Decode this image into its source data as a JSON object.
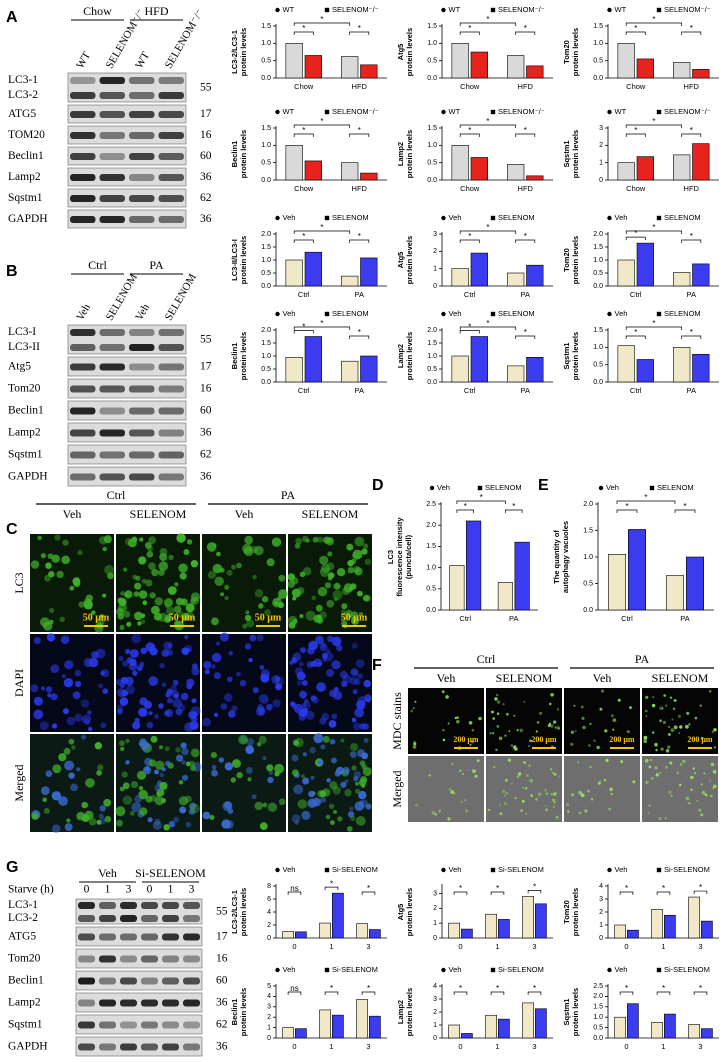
{
  "chart_data": [
    {
      "type": "bar",
      "ylabel": [
        "LC3-2/LC3-1",
        "protein levels"
      ],
      "categories": [
        "Chow",
        "HFD"
      ],
      "series": [
        {
          "name": "WT",
          "color": "#d9d9d9",
          "values": [
            1.0,
            0.62
          ]
        },
        {
          "name": "SELENOM⁻/⁻",
          "color": "#e8221c",
          "values": [
            0.65,
            0.38
          ]
        }
      ],
      "ylim": [
        0,
        1.5
      ],
      "yticks": [
        {
          "value": 0,
          "label": "0.0"
        },
        0.5,
        {
          "value": 1,
          "label": "1.0"
        },
        1.5
      ],
      "significance": [
        "*",
        "*",
        "*"
      ]
    },
    {
      "type": "bar",
      "ylabel": [
        "Atg5",
        "protein levels"
      ],
      "categories": [
        "Chow",
        "HFD"
      ],
      "series": [
        {
          "name": "WT",
          "color": "#d9d9d9",
          "values": [
            1.0,
            0.65
          ]
        },
        {
          "name": "SELENOM⁻/⁻",
          "color": "#e8221c",
          "values": [
            0.75,
            0.35
          ]
        }
      ],
      "ylim": [
        0,
        1.5
      ],
      "yticks": [
        {
          "value": 0,
          "label": "0.0"
        },
        0.5,
        {
          "value": 1,
          "label": "1.0"
        },
        1.5
      ],
      "significance": [
        "*",
        "*",
        "*"
      ]
    },
    {
      "type": "bar",
      "ylabel": [
        "Tom20",
        "protein levels"
      ],
      "categories": [
        "Chow",
        "HFD"
      ],
      "series": [
        {
          "name": "WT",
          "color": "#d9d9d9",
          "values": [
            1.0,
            0.45
          ]
        },
        {
          "name": "SELENOM⁻/⁻",
          "color": "#e8221c",
          "values": [
            0.55,
            0.25
          ]
        }
      ],
      "ylim": [
        0,
        1.5
      ],
      "yticks": [
        {
          "value": 0,
          "label": "0.0"
        },
        0.5,
        {
          "value": 1,
          "label": "1.0"
        },
        1.5
      ],
      "significance": [
        "*",
        "*",
        "*"
      ]
    },
    {
      "type": "bar",
      "ylabel": [
        "Beclin1",
        "protein levels"
      ],
      "categories": [
        "Chow",
        "HFD"
      ],
      "series": [
        {
          "name": "WT",
          "color": "#d9d9d9",
          "values": [
            1.0,
            0.5
          ]
        },
        {
          "name": "SELENOM⁻/⁻",
          "color": "#e8221c",
          "values": [
            0.55,
            0.2
          ]
        }
      ],
      "ylim": [
        0,
        1.5
      ],
      "yticks": [
        {
          "value": 0,
          "label": "0.0"
        },
        0.5,
        {
          "value": 1,
          "label": "1.0"
        },
        1.5
      ],
      "significance": [
        "*",
        "*",
        "*"
      ]
    },
    {
      "type": "bar",
      "ylabel": [
        "Lamp2",
        "protein levels"
      ],
      "categories": [
        "Chow",
        "HFD"
      ],
      "series": [
        {
          "name": "WT",
          "color": "#d9d9d9",
          "values": [
            1.0,
            0.45
          ]
        },
        {
          "name": "SELENOM⁻/⁻",
          "color": "#e8221c",
          "values": [
            0.65,
            0.12
          ]
        }
      ],
      "ylim": [
        0,
        1.5
      ],
      "yticks": [
        {
          "value": 0,
          "label": "0.0"
        },
        0.5,
        {
          "value": 1,
          "label": "1.0"
        },
        1.5
      ],
      "significance": [
        "*",
        "*",
        "*"
      ]
    },
    {
      "type": "bar",
      "ylabel": [
        "Sqstm1",
        "protein levels"
      ],
      "categories": [
        "Chow",
        "HFD"
      ],
      "series": [
        {
          "name": "WT",
          "color": "#d9d9d9",
          "values": [
            1.0,
            1.45
          ]
        },
        {
          "name": "SELENOM⁻/⁻",
          "color": "#e8221c",
          "values": [
            1.35,
            2.1
          ]
        }
      ],
      "ylim": [
        0,
        3
      ],
      "yticks": [
        0,
        1,
        2,
        3
      ],
      "significance": [
        "*",
        "*",
        "*"
      ]
    },
    {
      "type": "bar",
      "ylabel": [
        "LC3-II/LC3-I",
        "protein levels"
      ],
      "categories": [
        "Ctrl",
        "PA"
      ],
      "series": [
        {
          "name": "Veh",
          "color": "#f1e8c8",
          "values": [
            1.0,
            0.38
          ]
        },
        {
          "name": "SELENOM",
          "color": "#3b3bf0",
          "values": [
            1.3,
            1.08
          ]
        }
      ],
      "ylim": [
        0,
        2
      ],
      "yticks": [
        {
          "value": 0,
          "label": "0.0"
        },
        0.5,
        {
          "value": 1,
          "label": "1.0"
        },
        1.5,
        {
          "value": 2,
          "label": "2.0"
        }
      ],
      "significance": [
        "*",
        "*",
        "*"
      ]
    },
    {
      "type": "bar",
      "ylabel": [
        "Atg5",
        "protein levels"
      ],
      "categories": [
        "Ctrl",
        "PA"
      ],
      "series": [
        {
          "name": "Veh",
          "color": "#f1e8c8",
          "values": [
            1.0,
            0.75
          ]
        },
        {
          "name": "SELENOM",
          "color": "#3b3bf0",
          "values": [
            1.9,
            1.2
          ]
        }
      ],
      "ylim": [
        0,
        3
      ],
      "yticks": [
        0,
        1,
        2,
        3
      ],
      "significance": [
        "*",
        "*",
        "*"
      ]
    },
    {
      "type": "bar",
      "ylabel": [
        "Tom20",
        "protein levels"
      ],
      "categories": [
        "Ctrl",
        "PA"
      ],
      "series": [
        {
          "name": "Veh",
          "color": "#f1e8c8",
          "values": [
            1.0,
            0.52
          ]
        },
        {
          "name": "SELENOM",
          "color": "#3b3bf0",
          "values": [
            1.65,
            0.85
          ]
        }
      ],
      "ylim": [
        0,
        2
      ],
      "yticks": [
        {
          "value": 0,
          "label": "0.0"
        },
        0.5,
        {
          "value": 1,
          "label": "1.0"
        },
        1.5,
        {
          "value": 2,
          "label": "2.0"
        }
      ],
      "significance": [
        "*",
        "*",
        "*"
      ]
    },
    {
      "type": "bar",
      "ylabel": [
        "Beclin1",
        "protein levels"
      ],
      "categories": [
        "Ctrl",
        "PA"
      ],
      "series": [
        {
          "name": "Veh",
          "color": "#f1e8c8",
          "values": [
            0.95,
            0.8
          ]
        },
        {
          "name": "SELENOM",
          "color": "#3b3bf0",
          "values": [
            1.75,
            1.0
          ]
        }
      ],
      "ylim": [
        0,
        2
      ],
      "yticks": [
        {
          "value": 0,
          "label": "0.0"
        },
        0.5,
        {
          "value": 1,
          "label": "1.0"
        },
        1.5,
        {
          "value": 2,
          "label": "2.0"
        }
      ],
      "significance": [
        "*",
        "*",
        "*"
      ]
    },
    {
      "type": "bar",
      "ylabel": [
        "Lamp2",
        "protein levels"
      ],
      "categories": [
        "Ctrl",
        "PA"
      ],
      "series": [
        {
          "name": "Veh",
          "color": "#f1e8c8",
          "values": [
            1.0,
            0.62
          ]
        },
        {
          "name": "SELENOM",
          "color": "#3b3bf0",
          "values": [
            1.75,
            0.95
          ]
        }
      ],
      "ylim": [
        0,
        2
      ],
      "yticks": [
        {
          "value": 0,
          "label": "0.0"
        },
        0.5,
        {
          "value": 1,
          "label": "1.0"
        },
        1.5,
        {
          "value": 2,
          "label": "2.0"
        }
      ],
      "significance": [
        "*",
        "*",
        "*"
      ]
    },
    {
      "type": "bar",
      "ylabel": [
        "Sqstm1",
        "protein levels"
      ],
      "categories": [
        "Ctrl",
        "PA"
      ],
      "series": [
        {
          "name": "Veh",
          "color": "#f1e8c8",
          "values": [
            1.05,
            1.0
          ]
        },
        {
          "name": "SELENOM",
          "color": "#3b3bf0",
          "values": [
            0.65,
            0.8
          ]
        }
      ],
      "ylim": [
        0,
        1.5
      ],
      "yticks": [
        {
          "value": 0,
          "label": "0.0"
        },
        0.5,
        {
          "value": 1,
          "label": "1.0"
        },
        1.5
      ],
      "significance": [
        "*",
        "*",
        "*"
      ]
    },
    {
      "type": "bar",
      "panel": "D",
      "ylabel": [
        "LC3",
        "fluorescence intensity",
        "(puncta/cell)"
      ],
      "categories": [
        "Ctrl",
        "PA"
      ],
      "series": [
        {
          "name": "Veh",
          "color": "#f1e8c8",
          "values": [
            1.05,
            0.65
          ]
        },
        {
          "name": "SELENOM",
          "color": "#3b3bf0",
          "values": [
            2.1,
            1.6
          ]
        }
      ],
      "ylim": [
        0,
        2.5
      ],
      "yticks": [
        {
          "value": 0,
          "label": "0.0"
        },
        0.5,
        {
          "value": 1,
          "label": "1.0"
        },
        1.5,
        {
          "value": 2,
          "label": "2.0"
        },
        2.5
      ],
      "significance": [
        "*",
        "*",
        "*"
      ]
    },
    {
      "type": "bar",
      "panel": "E",
      "ylabel": [
        "The quantity of",
        "autophagy vacuoles"
      ],
      "categories": [
        "Ctrl",
        "PA"
      ],
      "series": [
        {
          "name": "Veh",
          "color": "#f1e8c8",
          "values": [
            1.05,
            0.65
          ]
        },
        {
          "name": "SELENOM",
          "color": "#3b3bf0",
          "values": [
            1.52,
            1.0
          ]
        }
      ],
      "ylim": [
        0,
        2
      ],
      "yticks": [
        {
          "value": 0,
          "label": "0.0"
        },
        0.5,
        {
          "value": 1,
          "label": "1.0"
        },
        1.5,
        {
          "value": 2,
          "label": "2.0"
        }
      ],
      "significance": [
        "*",
        "*",
        "*"
      ]
    },
    {
      "type": "bar",
      "ylabel": [
        "LC3-2/LC3-1",
        "protein levels"
      ],
      "categories": [
        "0",
        "1",
        "3"
      ],
      "series": [
        {
          "name": "Veh",
          "color": "#f1e8c8",
          "values": [
            1.0,
            2.3,
            2.2
          ]
        },
        {
          "name": "Si-SELENOM",
          "color": "#3b3bf0",
          "values": [
            0.95,
            6.9,
            1.3
          ]
        }
      ],
      "ylim": [
        0,
        8
      ],
      "yticks": [
        0,
        2,
        4,
        6,
        8
      ],
      "significance": [
        "ns",
        "*",
        "*"
      ]
    },
    {
      "type": "bar",
      "ylabel": [
        "Atg5",
        "protein levels"
      ],
      "categories": [
        "0",
        "1",
        "3"
      ],
      "series": [
        {
          "name": "Veh",
          "color": "#f1e8c8",
          "values": [
            1.0,
            1.6,
            2.8
          ]
        },
        {
          "name": "Si-SELENOM",
          "color": "#3b3bf0",
          "values": [
            0.6,
            1.25,
            2.3
          ]
        }
      ],
      "ylim": [
        0,
        3.5
      ],
      "yticks": [
        0,
        1,
        2,
        3
      ],
      "significance": [
        "*",
        "*",
        "*"
      ]
    },
    {
      "type": "bar",
      "ylabel": [
        "Tom20",
        "protein levels"
      ],
      "categories": [
        "0",
        "1",
        "3"
      ],
      "series": [
        {
          "name": "Veh",
          "color": "#f1e8c8",
          "values": [
            1.0,
            2.2,
            3.15
          ]
        },
        {
          "name": "Si-SELENOM",
          "color": "#3b3bf0",
          "values": [
            0.6,
            1.75,
            1.3
          ]
        }
      ],
      "ylim": [
        0,
        4
      ],
      "yticks": [
        0,
        1,
        2,
        3,
        4
      ],
      "significance": [
        "*",
        "*",
        "*"
      ]
    },
    {
      "type": "bar",
      "ylabel": [
        "Beclin1",
        "protein levels"
      ],
      "categories": [
        "0",
        "1",
        "3"
      ],
      "series": [
        {
          "name": "Veh",
          "color": "#f1e8c8",
          "values": [
            1.0,
            2.7,
            3.7
          ]
        },
        {
          "name": "Si-SELENOM",
          "color": "#3b3bf0",
          "values": [
            0.9,
            2.2,
            2.1
          ]
        }
      ],
      "ylim": [
        0,
        5
      ],
      "yticks": [
        0,
        1,
        2,
        3,
        4,
        5
      ],
      "significance": [
        "ns",
        "*",
        "*"
      ]
    },
    {
      "type": "bar",
      "ylabel": [
        "Lamp2",
        "protein levels"
      ],
      "categories": [
        "0",
        "1",
        "3"
      ],
      "series": [
        {
          "name": "Veh",
          "color": "#f1e8c8",
          "values": [
            1.0,
            1.75,
            2.7
          ]
        },
        {
          "name": "Si-SELENOM",
          "color": "#3b3bf0",
          "values": [
            0.35,
            1.45,
            2.25
          ]
        }
      ],
      "ylim": [
        0,
        4
      ],
      "yticks": [
        0,
        1,
        2,
        3,
        4
      ],
      "significance": [
        "*",
        "*",
        "*"
      ]
    },
    {
      "type": "bar",
      "ylabel": [
        "Sqstm1",
        "protein levels"
      ],
      "categories": [
        "0",
        "1",
        "3"
      ],
      "series": [
        {
          "name": "Veh",
          "color": "#f1e8c8",
          "values": [
            1.0,
            0.75,
            0.65
          ]
        },
        {
          "name": "Si-SELENOM",
          "color": "#3b3bf0",
          "values": [
            1.65,
            1.15,
            0.45
          ]
        }
      ],
      "ylim": [
        0,
        2.5
      ],
      "yticks": [
        {
          "value": 0,
          "label": "0.0"
        },
        0.5,
        {
          "value": 1,
          "label": "1.0"
        },
        1.5,
        {
          "value": 2,
          "label": "2.0"
        },
        2.5
      ],
      "significance": [
        "*",
        "*",
        "*"
      ]
    }
  ],
  "blots": [
    {
      "panel": "A",
      "groups": [
        "Chow",
        "HFD"
      ],
      "lanes": [
        "WT",
        "SELENOM⁻/⁻",
        "WT",
        "SELENOM⁻/⁻"
      ],
      "bands": [
        {
          "labels": [
            "LC3-1",
            "LC3-2"
          ],
          "kda": 55
        },
        {
          "labels": [
            "ATG5"
          ],
          "kda": 17
        },
        {
          "labels": [
            "TOM20"
          ],
          "kda": 16
        },
        {
          "labels": [
            "Beclin1"
          ],
          "kda": 60
        },
        {
          "labels": [
            "Lamp2"
          ],
          "kda": 36
        },
        {
          "labels": [
            "Sqstm1"
          ],
          "kda": 62
        },
        {
          "labels": [
            "GAPDH"
          ],
          "kda": 36
        }
      ]
    },
    {
      "panel": "B",
      "groups": [
        "Ctrl",
        "PA"
      ],
      "lanes": [
        "Veh",
        "SELENOM",
        "Veh",
        "SELENOM"
      ],
      "bands": [
        {
          "labels": [
            "LC3-I",
            "LC3-II"
          ],
          "kda": 55
        },
        {
          "labels": [
            "Atg5"
          ],
          "kda": 17
        },
        {
          "labels": [
            "Tom20"
          ],
          "kda": 16
        },
        {
          "labels": [
            "Beclin1"
          ],
          "kda": 60
        },
        {
          "labels": [
            "Lamp2"
          ],
          "kda": 36
        },
        {
          "labels": [
            "Sqstm1"
          ],
          "kda": 62
        },
        {
          "labels": [
            "GAPDH"
          ],
          "kda": 36
        }
      ]
    },
    {
      "panel": "G",
      "header": "Starve (h)",
      "groups": [
        "Veh",
        "Si-SELENOM"
      ],
      "lanes": [
        "0",
        "1",
        "3",
        "0",
        "1",
        "3"
      ],
      "bands": [
        {
          "labels": [
            "LC3-1",
            "LC3-2"
          ],
          "kda": 55
        },
        {
          "labels": [
            "ATG5"
          ],
          "kda": 17
        },
        {
          "labels": [
            "Tom20"
          ],
          "kda": 16
        },
        {
          "labels": [
            "Beclin1"
          ],
          "kda": 60
        },
        {
          "labels": [
            "Lamp2"
          ],
          "kda": 36
        },
        {
          "labels": [
            "Sqstm1"
          ],
          "kda": 62
        },
        {
          "labels": [
            "GAPDH"
          ],
          "kda": 36
        }
      ]
    }
  ],
  "images": [
    {
      "panel": "C",
      "groups": [
        "Ctrl",
        "PA"
      ],
      "columns": [
        "Veh",
        "SELENOM",
        "Veh",
        "SELENOM"
      ],
      "rows": [
        "LC3",
        "DAPI",
        "Merged"
      ],
      "scale": "50 μm"
    },
    {
      "panel": "F",
      "groups": [
        "Ctrl",
        "PA"
      ],
      "columns": [
        "Veh",
        "SELENOM",
        "Veh",
        "SELENOM"
      ],
      "rows": [
        "MDC stains",
        "Merged"
      ],
      "scale": "200 μm"
    }
  ]
}
